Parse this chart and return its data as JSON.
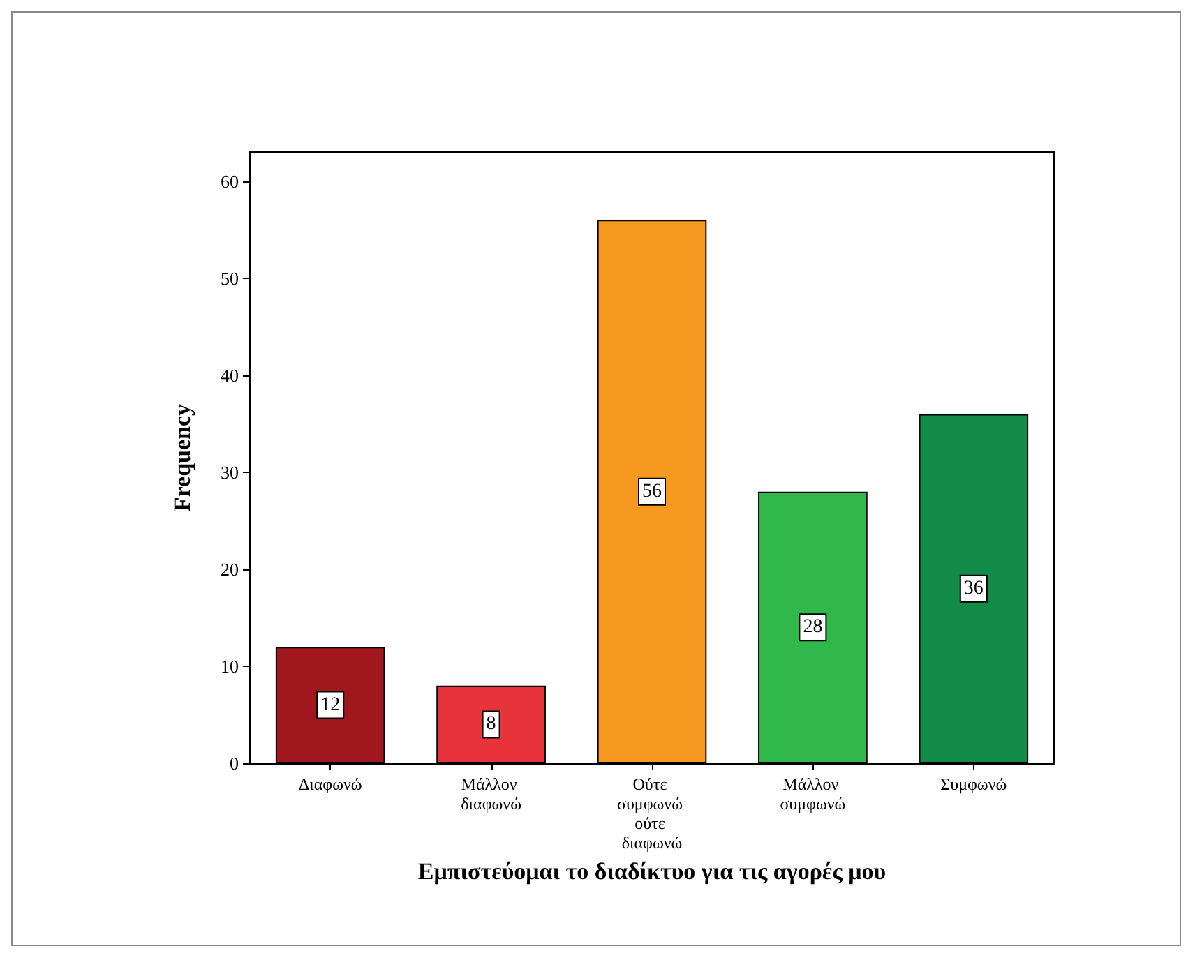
{
  "chart_data": {
    "type": "bar",
    "xlabel": "Εμπιστεύομαι το διαδίκτυο για τις αγορές μου",
    "ylabel": "Frequency",
    "categories": [
      "Διαφωνώ",
      "Μάλλον διαφωνώ",
      "Ούτε συμφωνώ ούτε διαφωνώ",
      "Μάλλον συμφωνώ",
      "Συμφωνώ"
    ],
    "values": [
      12,
      8,
      56,
      28,
      36
    ],
    "colors": [
      "#a0181d",
      "#e8333a",
      "#f7991e",
      "#30b84a",
      "#128a48"
    ],
    "ylim": [
      0,
      63
    ],
    "yticks": [
      0,
      10,
      20,
      30,
      40,
      50,
      60
    ],
    "data_labels": true,
    "grid": false
  }
}
